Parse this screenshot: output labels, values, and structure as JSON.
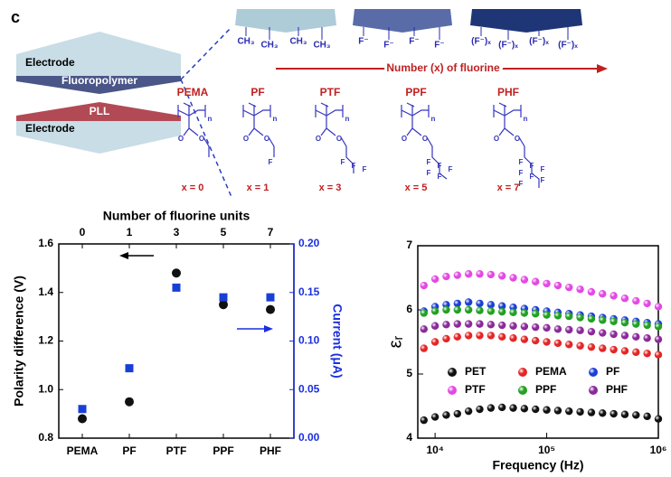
{
  "panel_label": "c",
  "diagram": {
    "stack": {
      "top_electrode": "Electrode",
      "fluoropolymer": "Fluoropolymer",
      "pll": "PLL",
      "bottom_electrode": "Electrode"
    },
    "films": [
      {
        "groups": [
          "CH₃",
          "CH₃",
          "CH₃",
          "CH₃"
        ]
      },
      {
        "groups": [
          "F⁻",
          "F⁻",
          "F⁻",
          "F⁻"
        ]
      },
      {
        "groups": [
          "(F⁻)ₓ",
          "(F⁻)ₓ",
          "(F⁻)ₓ",
          "(F⁻)ₓ"
        ]
      }
    ],
    "arrow_label": "Number (x) of fluorine",
    "structures": [
      {
        "name": "PEMA",
        "atoms": [
          "n",
          "O",
          "O"
        ],
        "x_label": "x = 0"
      },
      {
        "name": "PF",
        "atoms": [
          "n",
          "O",
          "O",
          "F"
        ],
        "x_label": "x = 1"
      },
      {
        "name": "PTF",
        "atoms": [
          "n",
          "O",
          "O",
          "F",
          "F",
          "F"
        ],
        "x_label": "x = 3"
      },
      {
        "name": "PPF",
        "atoms": [
          "n",
          "O",
          "O",
          "F",
          "F",
          "F",
          "F",
          "F"
        ],
        "x_label": "x = 5"
      },
      {
        "name": "PHF",
        "atoms": [
          "n",
          "O",
          "O",
          "F",
          "F",
          "F",
          "F",
          "F",
          "F",
          "F"
        ],
        "x_label": "x = 7"
      }
    ]
  },
  "chart_data": [
    {
      "type": "dual-scatter",
      "top_axis": {
        "label": "Number of fluorine units",
        "ticks": [
          0,
          1,
          3,
          5,
          7
        ]
      },
      "categories": [
        "PEMA",
        "PF",
        "PTF",
        "PPF",
        "PHF"
      ],
      "ylabel": "Polarity difference (V)",
      "y2label": "Current (μA)",
      "ylim": [
        0.8,
        1.6
      ],
      "yticks": [
        0.8,
        {
          "value": 1,
          "label": "1.0"
        },
        1.2,
        1.4,
        1.6
      ],
      "y2lim": [
        0,
        0.2
      ],
      "y2ticks": [
        {
          "value": 0,
          "label": "0.00"
        },
        0.05,
        {
          "value": 0.1,
          "label": "0.10"
        },
        0.15,
        {
          "value": 0.2,
          "label": "0.20"
        }
      ],
      "y2color": "#1a2fe0",
      "series": [
        {
          "color": "#111111",
          "marker": "circle",
          "values": [
            0.88,
            0.95,
            1.48,
            1.35,
            1.33
          ]
        },
        {
          "color": "#1a3fd6",
          "marker": "square",
          "axis": "y2",
          "values": [
            0.03,
            0.072,
            0.155,
            0.145,
            0.145
          ]
        }
      ]
    },
    {
      "type": "scatter",
      "log_x": true,
      "xlabel": "Frequency (Hz)",
      "ylabel": "εᵣ",
      "xlim": [
        7000,
        1000000
      ],
      "xticks": [
        {
          "value": 10000,
          "label": "10⁴"
        },
        {
          "value": 100000,
          "label": "10⁵"
        },
        {
          "value": 1000000,
          "label": "10⁶"
        }
      ],
      "ylim": [
        4,
        7
      ],
      "yticks": [
        4,
        5,
        6,
        7
      ],
      "x": [
        7943,
        10000,
        12589,
        15849,
        19953,
        25119,
        31623,
        39811,
        50119,
        63096,
        79433,
        100000,
        125893,
        158489,
        199526,
        251189,
        316228,
        398107,
        501187,
        630957,
        794328,
        1000000
      ],
      "series": [
        {
          "name": "PET",
          "color": "#111111",
          "values": [
            4.28,
            4.33,
            4.36,
            4.38,
            4.42,
            4.45,
            4.47,
            4.48,
            4.47,
            4.46,
            4.45,
            4.44,
            4.43,
            4.42,
            4.41,
            4.4,
            4.39,
            4.38,
            4.37,
            4.36,
            4.34,
            4.3
          ]
        },
        {
          "name": "PEMA",
          "color": "#e52525",
          "values": [
            5.4,
            5.5,
            5.55,
            5.58,
            5.6,
            5.6,
            5.6,
            5.58,
            5.56,
            5.54,
            5.52,
            5.5,
            5.48,
            5.46,
            5.44,
            5.42,
            5.4,
            5.38,
            5.36,
            5.34,
            5.32,
            5.3
          ]
        },
        {
          "name": "PF",
          "color": "#1a3fd6",
          "values": [
            5.98,
            6.05,
            6.08,
            6.1,
            6.12,
            6.1,
            6.08,
            6.06,
            6.04,
            6.02,
            6,
            5.98,
            5.96,
            5.94,
            5.92,
            5.9,
            5.88,
            5.86,
            5.84,
            5.82,
            5.8,
            5.78
          ]
        },
        {
          "name": "PTF",
          "color": "#e448e4",
          "values": [
            6.38,
            6.48,
            6.52,
            6.54,
            6.56,
            6.56,
            6.55,
            6.53,
            6.5,
            6.47,
            6.44,
            6.41,
            6.38,
            6.35,
            6.32,
            6.28,
            6.25,
            6.22,
            6.18,
            6.14,
            6.1,
            6.05
          ]
        },
        {
          "name": "PPF",
          "color": "#22a022",
          "values": [
            5.95,
            5.98,
            6,
            6,
            6,
            5.99,
            5.98,
            5.97,
            5.96,
            5.95,
            5.94,
            5.92,
            5.91,
            5.9,
            5.88,
            5.86,
            5.84,
            5.82,
            5.8,
            5.78,
            5.76,
            5.74
          ]
        },
        {
          "name": "PHF",
          "color": "#8a2a9a",
          "values": [
            5.7,
            5.75,
            5.77,
            5.78,
            5.78,
            5.78,
            5.77,
            5.76,
            5.75,
            5.74,
            5.73,
            5.72,
            5.7,
            5.69,
            5.68,
            5.66,
            5.64,
            5.62,
            5.6,
            5.58,
            5.56,
            5.54
          ]
        }
      ]
    }
  ]
}
